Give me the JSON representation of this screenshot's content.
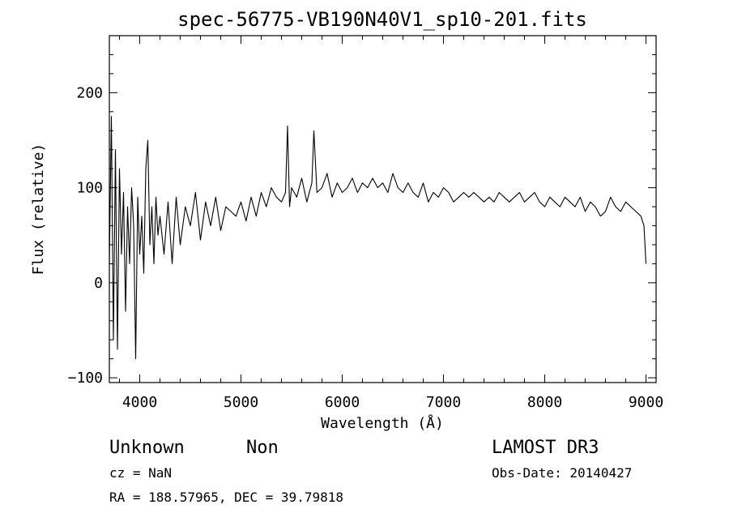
{
  "chart_data": {
    "type": "line",
    "title": "spec-56775-VB190N40V1_sp10-201.fits",
    "xlabel": "Wavelength (Å)",
    "ylabel": "Flux (relative)",
    "xlim": [
      3700,
      9100
    ],
    "ylim": [
      -105,
      260
    ],
    "x_ticks": [
      4000,
      5000,
      6000,
      7000,
      8000,
      9000
    ],
    "x_tick_labels": [
      "4000",
      "5000",
      "6000",
      "7000",
      "8000",
      "9000"
    ],
    "y_ticks": [
      -100,
      0,
      100,
      200
    ],
    "y_tick_labels": [
      "−100",
      "0",
      "100",
      "200"
    ],
    "grid": false,
    "series": [
      {
        "color": "#000000",
        "x": [
          3700,
          3720,
          3740,
          3760,
          3780,
          3800,
          3820,
          3840,
          3860,
          3880,
          3900,
          3920,
          3940,
          3960,
          3980,
          4000,
          4020,
          4040,
          4060,
          4080,
          4100,
          4120,
          4140,
          4160,
          4180,
          4200,
          4240,
          4280,
          4320,
          4360,
          4400,
          4450,
          4500,
          4550,
          4600,
          4650,
          4700,
          4750,
          4800,
          4850,
          4900,
          4950,
          5000,
          5050,
          5100,
          5150,
          5200,
          5250,
          5300,
          5350,
          5400,
          5440,
          5460,
          5480,
          5500,
          5550,
          5600,
          5650,
          5700,
          5720,
          5750,
          5800,
          5850,
          5900,
          5950,
          6000,
          6050,
          6100,
          6150,
          6200,
          6250,
          6300,
          6350,
          6400,
          6450,
          6500,
          6550,
          6600,
          6650,
          6700,
          6750,
          6800,
          6850,
          6900,
          6950,
          7000,
          7050,
          7100,
          7150,
          7200,
          7250,
          7300,
          7350,
          7400,
          7450,
          7500,
          7550,
          7600,
          7650,
          7700,
          7750,
          7800,
          7850,
          7900,
          7950,
          8000,
          8050,
          8100,
          8150,
          8200,
          8250,
          8300,
          8350,
          8400,
          8450,
          8500,
          8550,
          8600,
          8650,
          8700,
          8750,
          8800,
          8850,
          8900,
          8950,
          8980,
          9000
        ],
        "y": [
          20,
          175,
          -60,
          140,
          -70,
          120,
          30,
          95,
          -30,
          80,
          20,
          100,
          60,
          -80,
          90,
          30,
          70,
          10,
          120,
          150,
          40,
          80,
          20,
          90,
          50,
          70,
          30,
          85,
          20,
          90,
          40,
          80,
          60,
          95,
          45,
          85,
          60,
          90,
          55,
          80,
          75,
          70,
          85,
          65,
          90,
          70,
          95,
          80,
          100,
          90,
          85,
          95,
          165,
          80,
          100,
          90,
          110,
          85,
          105,
          160,
          95,
          100,
          115,
          90,
          105,
          95,
          100,
          110,
          95,
          105,
          100,
          110,
          100,
          105,
          95,
          115,
          100,
          95,
          105,
          95,
          90,
          105,
          85,
          95,
          90,
          100,
          95,
          85,
          90,
          95,
          90,
          95,
          90,
          85,
          90,
          85,
          95,
          90,
          85,
          90,
          95,
          85,
          90,
          95,
          85,
          80,
          90,
          85,
          80,
          90,
          85,
          80,
          90,
          75,
          85,
          80,
          70,
          75,
          90,
          80,
          75,
          85,
          80,
          75,
          70,
          60,
          20
        ]
      }
    ],
    "annotations": {
      "object_class": "Unknown",
      "object_subclass": "Non",
      "survey": "LAMOST DR3",
      "redshift": "cz = NaN",
      "obs_date": "Obs-Date: 20140427",
      "coordinates": "RA = 188.57965, DEC =  39.79818"
    }
  }
}
